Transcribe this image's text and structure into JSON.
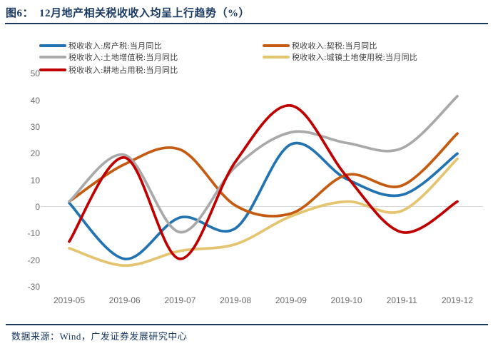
{
  "header": {
    "figure_label": "图6：",
    "title": "12月地产相关税收收入均呈上行趋势（%）"
  },
  "footer": {
    "source": "数据来源：Wind，广发证券发展研究中心"
  },
  "colors": {
    "navy": "#1a3a63",
    "axis_text": "#6b6b6b",
    "gridline": "#d9d9d9",
    "legend_text": "#3d3d3d"
  },
  "chart_data": {
    "type": "line",
    "title": "12月地产相关税收收入均呈上行趋势（%）",
    "categories": [
      "2019-05",
      "2019-06",
      "2019-07",
      "2019-08",
      "2019-09",
      "2019-10",
      "2019-11",
      "2019-12"
    ],
    "series": [
      {
        "name": "税收收入:房产税:当月同比",
        "slug": "property-tax",
        "color": "#2173b2",
        "values": [
          1.5,
          -19.5,
          -4,
          -8,
          23.5,
          10.5,
          4.5,
          20
        ]
      },
      {
        "name": "税收收入:契税:当月同比",
        "slug": "deed-tax",
        "color": "#c55a11",
        "values": [
          2,
          16,
          21.5,
          0.5,
          -2.5,
          12,
          8,
          27.5
        ]
      },
      {
        "name": "税收收入:土地增值税:当月同比",
        "slug": "land-vat",
        "color": "#a9a9a9",
        "values": [
          2,
          19.5,
          -9.5,
          15,
          28,
          24,
          22,
          41.5
        ]
      },
      {
        "name": "税收收入:城镇土地使用税:当月同比",
        "slug": "urban-land-use-tax",
        "color": "#e4c46f",
        "values": [
          -15.5,
          -22,
          -16.5,
          -14,
          -3.5,
          2,
          -1.5,
          18
        ]
      },
      {
        "name": "税收收入:耕地占用税:当月同比",
        "slug": "farmland-occupation-tax",
        "color": "#c00000",
        "values": [
          -13,
          18.5,
          -19.5,
          17,
          38,
          11.5,
          -9.5,
          2
        ]
      }
    ],
    "ylim": [
      -30,
      50
    ],
    "yticks": [
      50,
      40,
      30,
      20,
      10,
      0,
      -10,
      -20,
      -30
    ],
    "grid": "zero-line-only",
    "legend_position": "top-two-columns"
  }
}
